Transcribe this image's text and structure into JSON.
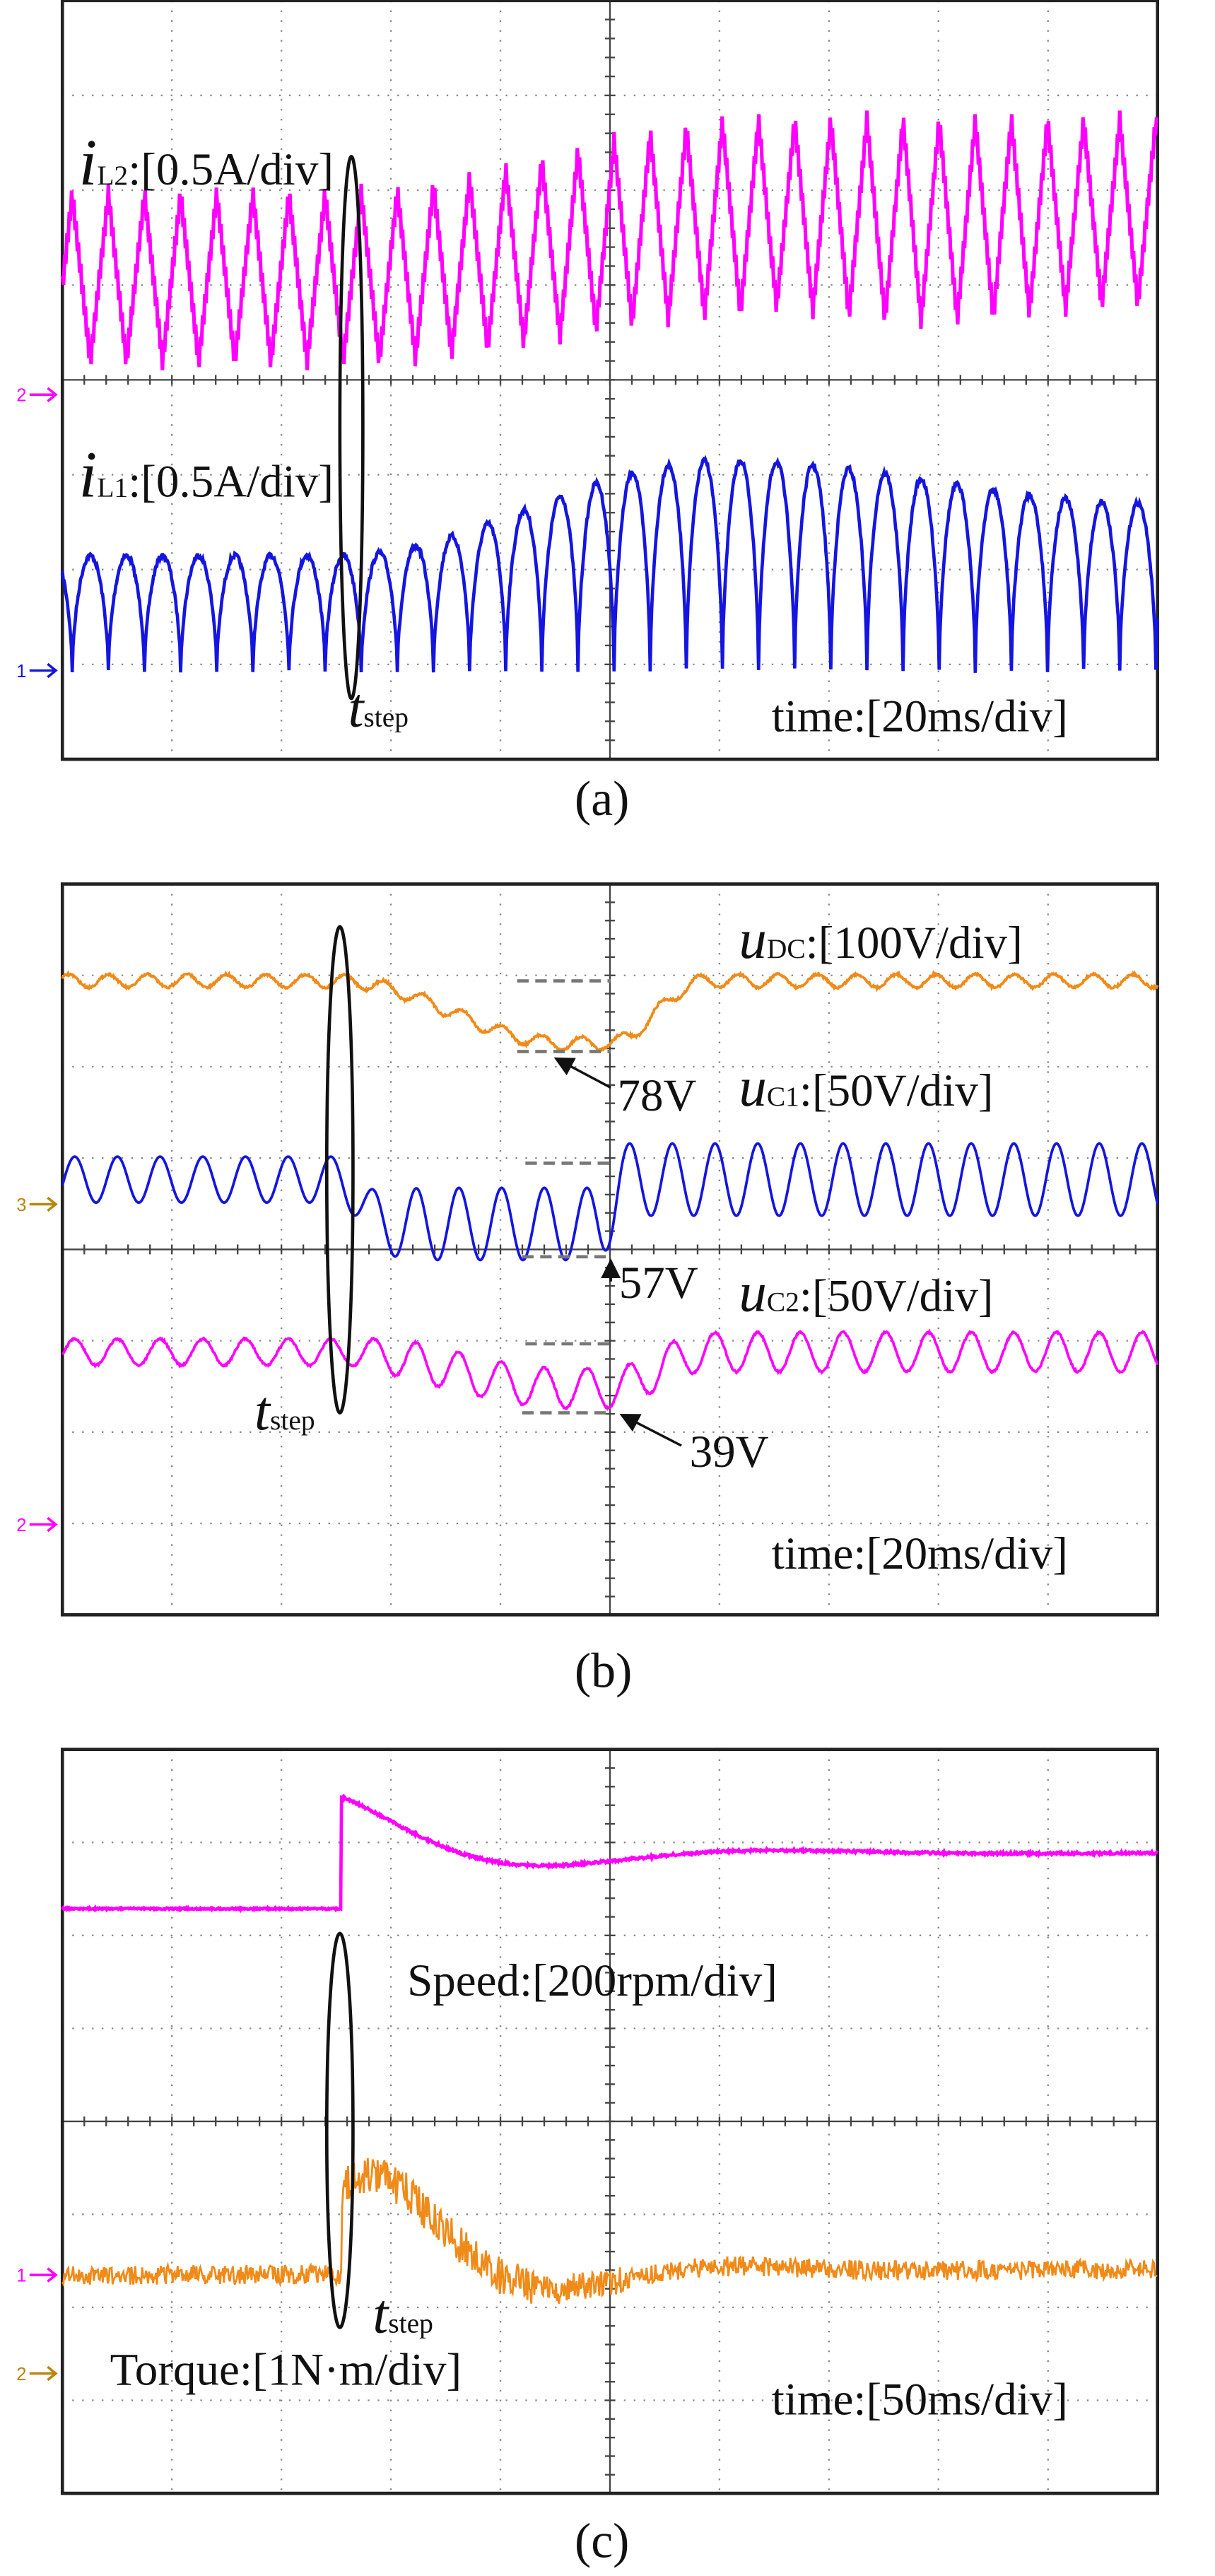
{
  "panels": [
    {
      "caption": "(a)",
      "channel_markers": [
        "2",
        "1"
      ],
      "step_label": {
        "symbol": "t",
        "sub": "step"
      },
      "time_scale": "time:[20ms/div]",
      "labels": [
        {
          "symbol": "i",
          "sub": "L2",
          "scale": ":[0.5A/div]"
        },
        {
          "symbol": "i",
          "sub": "L1",
          "scale": ":[0.5A/div]"
        }
      ]
    },
    {
      "caption": "(b)",
      "channel_markers": [
        "3",
        "2"
      ],
      "step_label": {
        "symbol": "t",
        "sub": "step"
      },
      "time_scale": "time:[20ms/div]",
      "labels": [
        {
          "symbol": "u",
          "sub": "DC",
          "scale": ":[100V/div]"
        },
        {
          "symbol": "u",
          "sub": "C1",
          "scale": ":[50V/div]"
        },
        {
          "symbol": "u",
          "sub": "C2",
          "scale": ":[50V/div]"
        }
      ],
      "annotations": [
        "78V",
        "57V",
        "39V"
      ]
    },
    {
      "caption": "(c)",
      "channel_markers": [
        "1",
        "2"
      ],
      "step_label": {
        "symbol": "t",
        "sub": "step"
      },
      "time_scale": "time:[50ms/div]",
      "labels": [
        "Speed:[200rpm/div]",
        "Torque:[1N·m/div]"
      ]
    }
  ]
}
